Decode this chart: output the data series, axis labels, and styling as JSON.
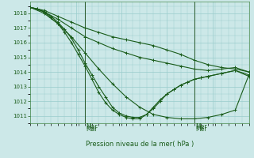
{
  "xlabel": "Pression niveau de la mer( hPa )",
  "bg_color": "#cce8e8",
  "grid_color": "#99cccc",
  "line_color": "#1a5c1a",
  "ylim": [
    1010.5,
    1018.8
  ],
  "xlim": [
    0,
    96
  ],
  "yticks": [
    1011,
    1012,
    1013,
    1014,
    1015,
    1016,
    1017,
    1018
  ],
  "vlines": [
    24,
    72
  ],
  "vline_labels": [
    "Mar",
    "Mer"
  ],
  "lines": [
    {
      "x": [
        0,
        6,
        12,
        18,
        24,
        30,
        36,
        42,
        48,
        54,
        60,
        66,
        72,
        78,
        84,
        90,
        96
      ],
      "y": [
        1018.4,
        1018.2,
        1017.8,
        1017.4,
        1017.0,
        1016.7,
        1016.4,
        1016.2,
        1016.0,
        1015.8,
        1015.5,
        1015.2,
        1014.8,
        1014.5,
        1014.3,
        1014.2,
        1014.0
      ]
    },
    {
      "x": [
        0,
        6,
        12,
        18,
        24,
        30,
        36,
        42,
        48,
        54,
        60,
        66,
        72,
        78,
        84,
        90,
        96
      ],
      "y": [
        1018.4,
        1018.1,
        1017.6,
        1017.0,
        1016.4,
        1016.0,
        1015.6,
        1015.3,
        1015.0,
        1014.8,
        1014.6,
        1014.4,
        1014.2,
        1014.1,
        1014.2,
        1014.3,
        1014.0
      ]
    },
    {
      "x": [
        0,
        3,
        6,
        9,
        12,
        15,
        18,
        21,
        24,
        27,
        30,
        33,
        36,
        39,
        42,
        45,
        48,
        51,
        54,
        57,
        60,
        63,
        66,
        69,
        72,
        75,
        78,
        84,
        90,
        96
      ],
      "y": [
        1018.4,
        1018.3,
        1018.1,
        1017.8,
        1017.4,
        1016.9,
        1016.3,
        1015.5,
        1014.6,
        1013.8,
        1013.0,
        1012.3,
        1011.6,
        1011.2,
        1011.0,
        1010.9,
        1010.9,
        1011.1,
        1011.5,
        1012.0,
        1012.5,
        1012.8,
        1013.1,
        1013.3,
        1013.5,
        1013.6,
        1013.7,
        1013.9,
        1014.1,
        1013.7
      ]
    },
    {
      "x": [
        0,
        3,
        6,
        9,
        12,
        15,
        18,
        21,
        24,
        27,
        30,
        33,
        36,
        39,
        42,
        45,
        48,
        51,
        54,
        57,
        60,
        63,
        66,
        69,
        72,
        75,
        78,
        84,
        90,
        96
      ],
      "y": [
        1018.4,
        1018.3,
        1018.1,
        1017.7,
        1017.3,
        1016.7,
        1016.0,
        1015.2,
        1014.4,
        1013.5,
        1012.6,
        1011.9,
        1011.4,
        1011.1,
        1010.9,
        1010.8,
        1010.8,
        1011.1,
        1011.6,
        1012.1,
        1012.5,
        1012.8,
        1013.1,
        1013.3,
        1013.5,
        1013.6,
        1013.7,
        1013.9,
        1014.1,
        1013.8
      ]
    },
    {
      "x": [
        0,
        6,
        12,
        18,
        24,
        30,
        36,
        42,
        48,
        54,
        60,
        66,
        72,
        78,
        84,
        90,
        96
      ],
      "y": [
        1018.4,
        1018.0,
        1017.3,
        1016.4,
        1015.3,
        1014.2,
        1013.2,
        1012.3,
        1011.6,
        1011.1,
        1010.9,
        1010.8,
        1010.8,
        1010.9,
        1011.1,
        1011.4,
        1013.8
      ]
    }
  ]
}
